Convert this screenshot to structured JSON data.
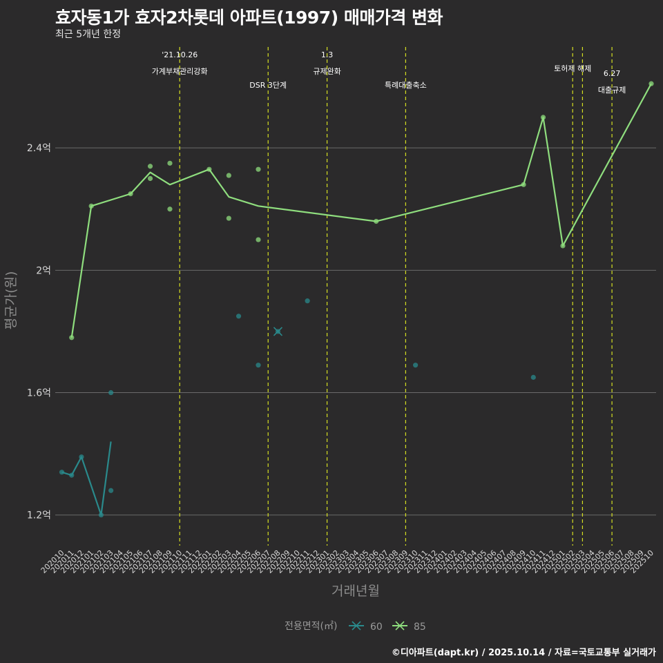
{
  "title": "효자동1가 효자2차롯데 아파트(1997) 매매가격 변화",
  "subtitle": "최근 5개년 한정",
  "caption": "©디아파트(dapt.kr) / 2025.10.14 / 자료=국토교통부 실거래가",
  "colors": {
    "background": "#2b2a2b",
    "grid": "#6b6b6b",
    "series_60": "#2a8a8c",
    "series_85": "#8fde7e",
    "event_line": "#d6e021"
  },
  "chart_data": {
    "type": "line",
    "xlabel": "거래년월",
    "ylabel": "평균가(원)",
    "x_categories": [
      "202010",
      "202011",
      "202012",
      "202101",
      "202102",
      "202103",
      "202104",
      "202105",
      "202106",
      "202107",
      "202108",
      "202109",
      "202110",
      "202111",
      "202112",
      "202201",
      "202202",
      "202203",
      "202204",
      "202205",
      "202206",
      "202207",
      "202208",
      "202209",
      "202210",
      "202211",
      "202212",
      "202301",
      "202302",
      "202303",
      "202304",
      "202305",
      "202306",
      "202307",
      "202308",
      "202309",
      "202310",
      "202311",
      "202312",
      "202401",
      "202402",
      "202403",
      "202404",
      "202405",
      "202406",
      "202407",
      "202408",
      "202409",
      "202410",
      "202411",
      "202412",
      "202501",
      "202502",
      "202503",
      "202504",
      "202505",
      "202506",
      "202507",
      "202508",
      "202509",
      "202510"
    ],
    "y_ticks": [
      {
        "value": 1.2,
        "label": "1.2억"
      },
      {
        "value": 1.6,
        "label": "1.6억"
      },
      {
        "value": 2.0,
        "label": "2억"
      },
      {
        "value": 2.4,
        "label": "2.4억"
      }
    ],
    "ylim": [
      1.1,
      2.73
    ],
    "grid": true,
    "legend": {
      "title": "전용면적(㎡)",
      "placement": "bottom",
      "items": [
        {
          "name": "60",
          "color": "#2a8a8c"
        },
        {
          "name": "85",
          "color": "#8fde7e"
        }
      ]
    },
    "series": [
      {
        "name": "60",
        "color": "#2a8a8c",
        "line": [
          [
            "202010",
            1.34
          ],
          [
            "202011",
            1.33
          ],
          [
            "202012",
            1.39
          ],
          [
            "202102",
            1.2
          ],
          [
            "202103",
            1.44
          ]
        ],
        "points": [
          [
            "202010",
            1.34
          ],
          [
            "202011",
            1.33
          ],
          [
            "202012",
            1.39
          ],
          [
            "202102",
            1.2
          ],
          [
            "202103",
            1.6
          ],
          [
            "202103",
            1.28
          ],
          [
            "202204",
            1.85
          ],
          [
            "202206",
            1.69
          ],
          [
            "202208",
            1.8
          ],
          [
            "202211",
            1.9
          ],
          [
            "202310",
            1.69
          ],
          [
            "202410",
            1.65
          ]
        ],
        "crosses": [
          [
            "202208",
            1.8
          ]
        ]
      },
      {
        "name": "85",
        "color": "#8fde7e",
        "line": [
          [
            "202011",
            1.78
          ],
          [
            "202101",
            2.21
          ],
          [
            "202105",
            2.25
          ],
          [
            "202107",
            2.32
          ],
          [
            "202109",
            2.28
          ],
          [
            "202201",
            2.33
          ],
          [
            "202203",
            2.24
          ],
          [
            "202206",
            2.21
          ],
          [
            "202306",
            2.16
          ],
          [
            "202409",
            2.28
          ],
          [
            "202411",
            2.5
          ],
          [
            "202501",
            2.08
          ],
          [
            "202510",
            2.61
          ]
        ],
        "points": [
          [
            "202011",
            1.78
          ],
          [
            "202101",
            2.21
          ],
          [
            "202105",
            2.25
          ],
          [
            "202107",
            2.34
          ],
          [
            "202107",
            2.3
          ],
          [
            "202109",
            2.35
          ],
          [
            "202109",
            2.2
          ],
          [
            "202201",
            2.33
          ],
          [
            "202203",
            2.31
          ],
          [
            "202203",
            2.17
          ],
          [
            "202206",
            2.33
          ],
          [
            "202206",
            2.1
          ],
          [
            "202306",
            2.16
          ],
          [
            "202409",
            2.28
          ],
          [
            "202411",
            2.5
          ],
          [
            "202501",
            2.08
          ],
          [
            "202510",
            2.61
          ]
        ]
      }
    ],
    "events": [
      {
        "x": 12.0,
        "line1": "'21.10.26",
        "line2": "가계부채관리강화",
        "level": 0
      },
      {
        "x": 21.0,
        "line1": "",
        "line2": "DSR 3단계",
        "level": 1
      },
      {
        "x": 27.0,
        "line1": "1.3",
        "line2": "규제완화",
        "level": 0
      },
      {
        "x": 35.0,
        "line1": "",
        "line2": "특례대출축소",
        "level": 1
      },
      {
        "x": 52.0,
        "line1": "",
        "line2": "토허제 해제",
        "level": 0
      },
      {
        "x": 53.0,
        "line1": "",
        "line2": "",
        "level": 0
      },
      {
        "x": 56.0,
        "line1": "6.27",
        "line2": "대출규제",
        "level": 1
      }
    ]
  }
}
